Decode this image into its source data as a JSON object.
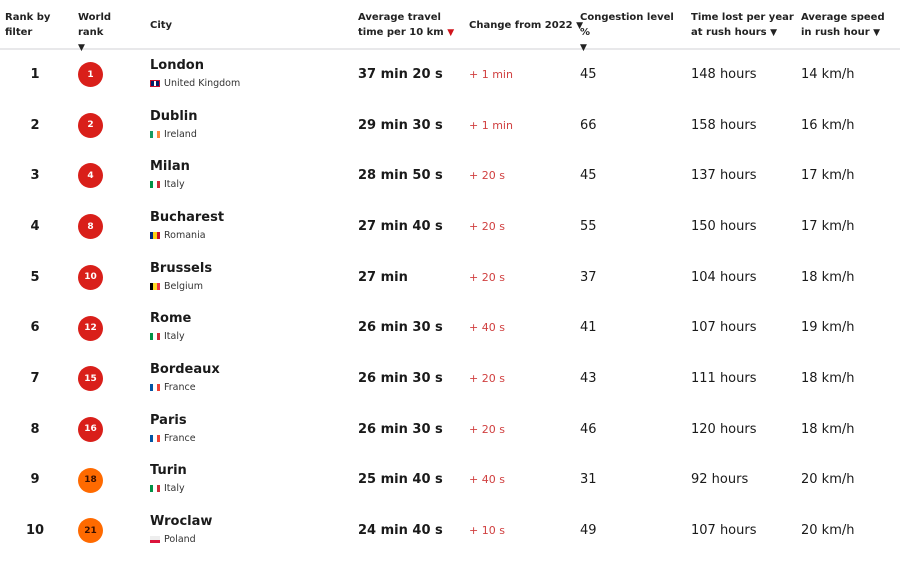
{
  "headers": {
    "rank_by_filter": "Rank by filter",
    "world_rank": "World rank",
    "city": "City",
    "avg_time": "Average travel time per 10 km",
    "change": "Change from 2022",
    "congestion": "Congestion level %",
    "time_lost": "Time lost per year at rush hours",
    "avg_speed": "Average speed in rush hour",
    "sort_arrow": "▼"
  },
  "colors": {
    "badge_red": "#d91f1a",
    "badge_orange": "#ff6a00",
    "change_red": "#d04040"
  },
  "rows": [
    {
      "rank": "1",
      "world_rank": "1",
      "badge": "red",
      "city": "London",
      "country": "United Kingdom",
      "flag": "uk",
      "avg_time": "37 min 20 s",
      "change": "+ 1 min",
      "congestion": "45",
      "time_lost": "148 hours",
      "speed": "14 km/h"
    },
    {
      "rank": "2",
      "world_rank": "2",
      "badge": "red",
      "city": "Dublin",
      "country": "Ireland",
      "flag": "ie",
      "avg_time": "29 min 30 s",
      "change": "+ 1 min",
      "congestion": "66",
      "time_lost": "158 hours",
      "speed": "16 km/h"
    },
    {
      "rank": "3",
      "world_rank": "4",
      "badge": "red",
      "city": "Milan",
      "country": "Italy",
      "flag": "it",
      "avg_time": "28 min 50 s",
      "change": "+ 20 s",
      "congestion": "45",
      "time_lost": "137 hours",
      "speed": "17 km/h"
    },
    {
      "rank": "4",
      "world_rank": "8",
      "badge": "red",
      "city": "Bucharest",
      "country": "Romania",
      "flag": "ro",
      "avg_time": "27 min 40 s",
      "change": "+ 20 s",
      "congestion": "55",
      "time_lost": "150 hours",
      "speed": "17 km/h"
    },
    {
      "rank": "5",
      "world_rank": "10",
      "badge": "red",
      "city": "Brussels",
      "country": "Belgium",
      "flag": "be",
      "avg_time": "27 min",
      "change": "+ 20 s",
      "congestion": "37",
      "time_lost": "104 hours",
      "speed": "18 km/h"
    },
    {
      "rank": "6",
      "world_rank": "12",
      "badge": "red",
      "city": "Rome",
      "country": "Italy",
      "flag": "it",
      "avg_time": "26 min 30 s",
      "change": "+ 40 s",
      "congestion": "41",
      "time_lost": "107 hours",
      "speed": "19 km/h"
    },
    {
      "rank": "7",
      "world_rank": "15",
      "badge": "red",
      "city": "Bordeaux",
      "country": "France",
      "flag": "fr",
      "avg_time": "26 min 30 s",
      "change": "+ 20 s",
      "congestion": "43",
      "time_lost": "111 hours",
      "speed": "18 km/h"
    },
    {
      "rank": "8",
      "world_rank": "16",
      "badge": "red",
      "city": "Paris",
      "country": "France",
      "flag": "fr",
      "avg_time": "26 min 30 s",
      "change": "+ 20 s",
      "congestion": "46",
      "time_lost": "120 hours",
      "speed": "18 km/h"
    },
    {
      "rank": "9",
      "world_rank": "18",
      "badge": "orange",
      "city": "Turin",
      "country": "Italy",
      "flag": "it",
      "avg_time": "25 min 40 s",
      "change": "+ 40 s",
      "congestion": "31",
      "time_lost": "92 hours",
      "speed": "20 km/h"
    },
    {
      "rank": "10",
      "world_rank": "21",
      "badge": "orange",
      "city": "Wroclaw",
      "country": "Poland",
      "flag": "pl",
      "avg_time": "24 min 40 s",
      "change": "+ 10 s",
      "congestion": "49",
      "time_lost": "107 hours",
      "speed": "20 km/h"
    }
  ]
}
